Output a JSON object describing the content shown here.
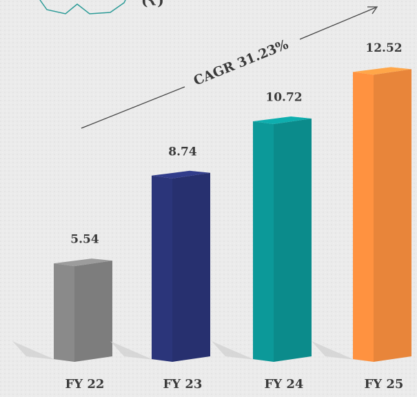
{
  "chart_data": {
    "type": "bar3d",
    "unit_label": "(₹)",
    "annotation": "CAGR 31.23%",
    "categories": [
      "FY 22",
      "FY 23",
      "FY 24",
      "FY 25"
    ],
    "values": [
      5.54,
      8.74,
      10.72,
      12.52
    ],
    "colors": [
      "#7d7d7d",
      "#27306f",
      "#0b8b8b",
      "#e8853a"
    ]
  }
}
